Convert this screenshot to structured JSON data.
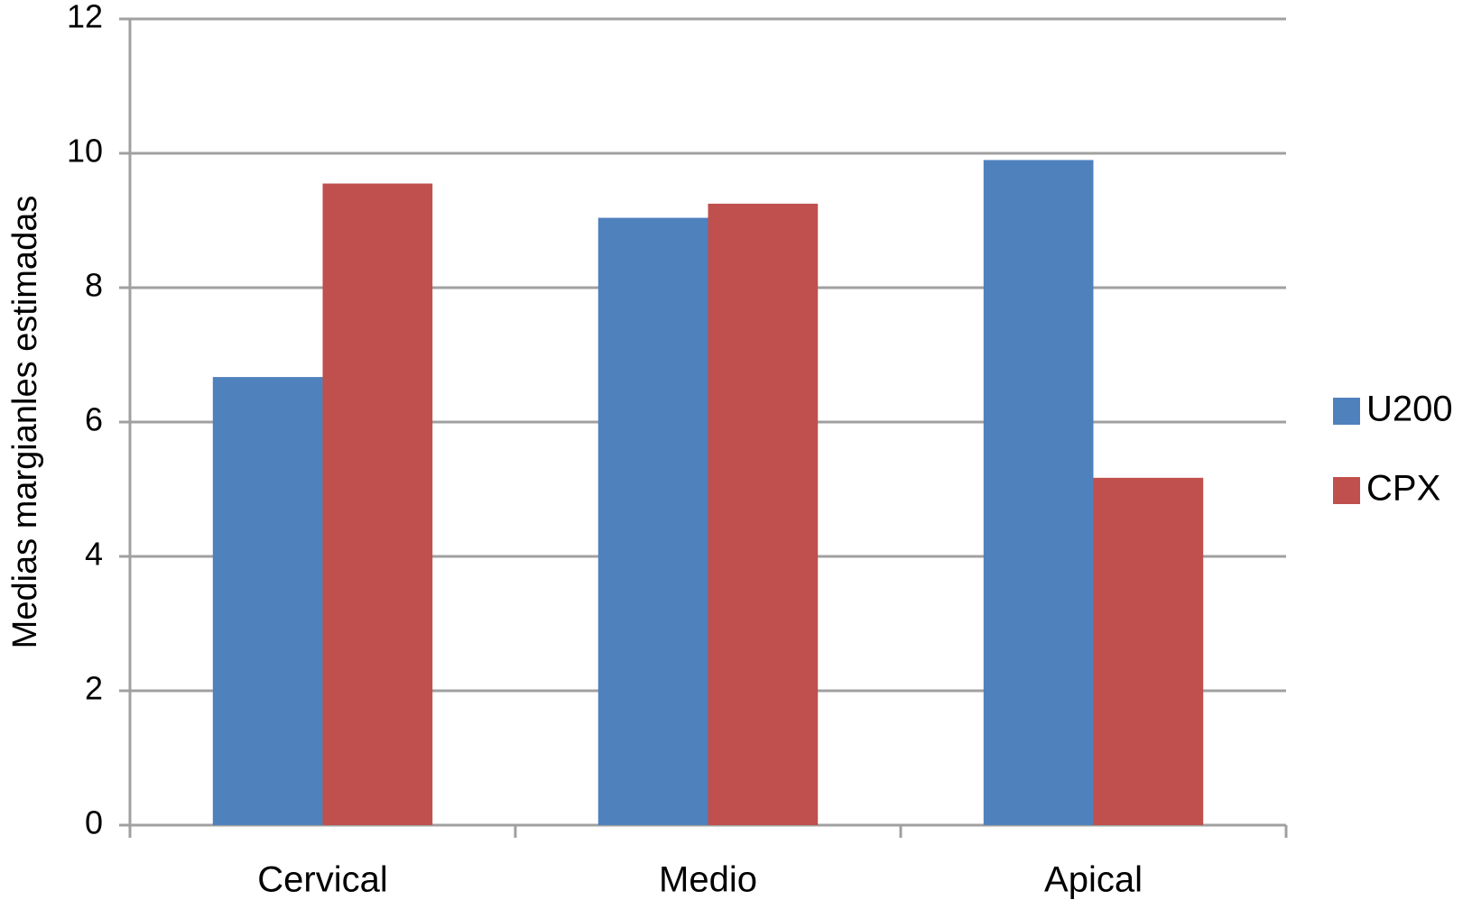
{
  "chart_data": {
    "type": "bar",
    "y_label": "Medias margianles estimadas",
    "categories": [
      "Cervical",
      "Medio",
      "Apical"
    ],
    "series": [
      {
        "name": "U200",
        "color": "#4f81bd",
        "values": [
          6.67,
          9.04,
          9.9
        ]
      },
      {
        "name": "CPX",
        "color": "#c0504d",
        "values": [
          9.55,
          9.25,
          5.17
        ]
      }
    ],
    "ylim": [
      0,
      12
    ],
    "yticks": [
      0,
      2,
      4,
      6,
      8,
      10,
      12
    ],
    "grid": true,
    "legend": "right"
  }
}
